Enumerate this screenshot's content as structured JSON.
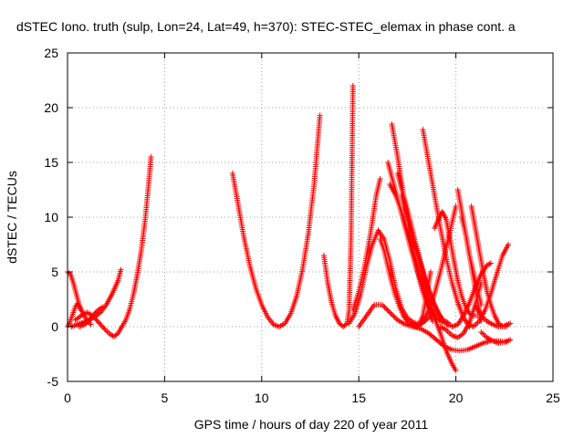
{
  "chart_data": {
    "type": "scatter",
    "title": "dSTEC Iono. truth (sulp, Lon=24, Lat=49, h=370): STEC-STEC_elemax in phase cont. a",
    "xlabel": "GPS time / hours of day 220 of year 2011",
    "ylabel": "dSTEC  / TECUs",
    "xlim": [
      0,
      25
    ],
    "ylim": [
      -5,
      25
    ],
    "xticks": [
      0,
      5,
      10,
      15,
      20,
      25
    ],
    "yticks": [
      -5,
      0,
      5,
      10,
      15,
      20,
      25
    ],
    "grid": true,
    "marker": "plus",
    "color": "#ff0000",
    "series": [
      {
        "x": [
          0.0,
          0.15,
          0.3,
          0.45,
          0.6,
          0.8,
          1.0,
          1.2
        ],
        "y": [
          5.0,
          4.8,
          4.0,
          3.0,
          2.0,
          1.2,
          0.6,
          0.2
        ]
      },
      {
        "x": [
          0.0,
          0.1,
          0.2,
          0.3,
          0.4,
          0.5,
          0.7
        ],
        "y": [
          0.0,
          0.3,
          0.8,
          1.3,
          1.8,
          2.1,
          1.5
        ]
      },
      {
        "x": [
          0.2,
          0.5,
          0.8,
          1.1,
          1.4,
          1.7,
          2.0,
          2.3,
          2.6,
          2.75
        ],
        "y": [
          0.0,
          0.2,
          0.4,
          0.6,
          0.9,
          1.3,
          2.0,
          3.0,
          4.2,
          5.2
        ]
      },
      {
        "x": [
          0.4,
          0.7,
          1.0,
          1.3,
          1.6,
          1.9,
          2.2,
          2.4,
          2.6,
          2.8
        ],
        "y": [
          0.6,
          1.0,
          1.3,
          1.0,
          0.4,
          -0.2,
          -0.7,
          -0.9,
          -0.6,
          0.0
        ]
      },
      {
        "x": [
          0.6,
          0.9,
          1.2,
          1.5,
          1.8
        ],
        "y": [
          0.0,
          0.2,
          0.8,
          1.4,
          1.8
        ]
      },
      {
        "x": [
          2.8,
          3.0,
          3.2,
          3.4,
          3.6,
          3.8,
          4.0,
          4.15,
          4.3
        ],
        "y": [
          0.0,
          0.6,
          1.6,
          3.0,
          4.8,
          7.0,
          9.8,
          12.5,
          15.5
        ]
      },
      {
        "x": [
          8.5,
          8.8,
          9.1,
          9.4,
          9.7,
          10.0,
          10.3,
          10.6,
          10.9,
          11.2,
          11.5,
          11.8,
          12.1,
          12.4,
          12.7,
          13.0
        ],
        "y": [
          14.0,
          11.0,
          8.0,
          5.5,
          3.5,
          2.0,
          0.9,
          0.2,
          0.0,
          0.3,
          1.2,
          2.8,
          5.2,
          8.5,
          13.0,
          19.3
        ]
      },
      {
        "x": [
          13.2,
          13.4,
          13.6,
          13.8,
          14.0,
          14.2,
          14.4,
          14.5,
          14.6,
          14.7
        ],
        "y": [
          6.5,
          4.0,
          2.2,
          1.0,
          0.3,
          0.0,
          0.3,
          1.5,
          8.0,
          22.0
        ]
      },
      {
        "x": [
          14.5,
          14.8,
          15.1,
          15.4,
          15.7,
          16.0,
          16.3,
          16.6,
          16.9,
          17.2,
          17.5,
          17.8,
          18.1,
          18.4,
          18.7
        ],
        "y": [
          0.3,
          1.2,
          3.0,
          5.5,
          7.5,
          8.8,
          8.0,
          6.0,
          3.5,
          1.7,
          0.8,
          0.4,
          0.2,
          0.5,
          1.0
        ]
      },
      {
        "x": [
          14.7,
          15.0,
          15.3,
          15.6,
          15.9,
          16.1
        ],
        "y": [
          1.5,
          3.2,
          5.5,
          8.5,
          12.0,
          13.5
        ]
      },
      {
        "x": [
          15.0,
          15.4,
          15.8,
          16.2,
          16.6,
          17.0,
          17.4,
          17.8,
          18.2,
          18.6,
          19.0,
          19.4,
          19.8,
          20.2,
          20.6,
          21.0,
          21.4,
          21.8,
          22.2,
          22.6
        ],
        "y": [
          0.0,
          1.0,
          2.0,
          2.0,
          1.3,
          0.6,
          0.2,
          0.0,
          -0.2,
          -0.6,
          -1.2,
          -1.8,
          -2.1,
          -2.2,
          -2.1,
          -1.8,
          -1.5,
          -1.3,
          -1.3,
          -1.4
        ]
      },
      {
        "x": [
          16.7,
          17.0,
          17.3,
          17.6,
          17.9,
          18.2,
          18.5,
          18.8
        ],
        "y": [
          18.5,
          15.5,
          12.0,
          8.8,
          6.0,
          3.8,
          2.0,
          0.5
        ]
      },
      {
        "x": [
          16.5,
          16.8,
          17.1,
          17.4,
          17.7,
          18.0,
          18.3,
          18.6,
          18.9,
          19.2,
          19.5,
          19.8,
          20.0
        ],
        "y": [
          15.0,
          13.0,
          11.0,
          9.0,
          7.0,
          5.2,
          3.6,
          2.0,
          0.8,
          -0.6,
          -2.2,
          -3.4,
          -4.0
        ]
      },
      {
        "x": [
          16.6,
          16.9,
          17.2,
          17.5,
          17.8,
          18.1,
          18.4,
          18.7,
          19.0,
          19.3
        ],
        "y": [
          13.0,
          12.0,
          10.5,
          8.8,
          7.0,
          5.0,
          3.2,
          1.8,
          0.8,
          0.4
        ]
      },
      {
        "x": [
          17.0,
          17.3,
          17.6,
          17.9,
          18.2,
          18.5,
          18.8,
          19.1,
          19.4
        ],
        "y": [
          14.0,
          12.0,
          10.0,
          7.8,
          5.8,
          3.8,
          2.3,
          1.2,
          0.5
        ]
      },
      {
        "x": [
          17.2,
          17.5,
          17.8,
          18.1,
          18.4,
          18.7,
          19.0,
          19.3,
          19.6
        ],
        "y": [
          12.0,
          10.0,
          8.0,
          6.2,
          4.4,
          2.9,
          1.6,
          0.6,
          0.1
        ]
      },
      {
        "x": [
          18.3,
          18.6,
          18.9,
          19.2,
          19.5,
          19.8,
          20.1,
          20.4,
          20.7
        ],
        "y": [
          18.0,
          15.0,
          12.0,
          9.0,
          6.3,
          4.0,
          2.2,
          0.8,
          0.0
        ]
      },
      {
        "x": [
          16.1,
          16.3,
          16.5,
          16.7,
          16.9,
          17.1,
          17.3,
          17.5,
          17.7,
          17.9,
          18.1,
          18.3,
          18.5,
          18.7
        ],
        "y": [
          8.0,
          7.0,
          5.5,
          4.0,
          2.8,
          1.8,
          1.0,
          0.5,
          0.2,
          0.0,
          0.2,
          1.0,
          3.0,
          5.0
        ]
      },
      {
        "x": [
          18.0,
          18.3,
          18.6,
          18.9,
          19.2,
          19.5,
          19.8,
          20.0
        ],
        "y": [
          0.0,
          0.4,
          1.5,
          3.0,
          5.0,
          7.2,
          9.5,
          11.0
        ]
      },
      {
        "x": [
          18.9,
          19.1,
          19.3,
          19.5,
          19.7,
          19.9,
          20.1,
          20.3,
          20.5,
          20.7,
          20.9,
          21.1
        ],
        "y": [
          9.0,
          9.8,
          10.5,
          9.8,
          8.0,
          6.0,
          4.2,
          2.8,
          1.8,
          1.2,
          1.0,
          1.0
        ]
      },
      {
        "x": [
          20.1,
          20.3,
          20.5,
          20.7,
          20.9,
          21.1,
          21.3
        ],
        "y": [
          12.5,
          10.5,
          8.5,
          6.5,
          4.5,
          2.5,
          0.5
        ]
      },
      {
        "x": [
          20.3,
          20.5,
          20.7,
          20.9,
          21.1,
          21.3
        ],
        "y": [
          10.0,
          8.5,
          6.5,
          5.0,
          3.5,
          2.0
        ]
      },
      {
        "x": [
          20.8,
          21.0,
          21.2,
          21.4,
          21.6,
          21.8,
          22.0,
          22.2,
          22.4,
          22.6
        ],
        "y": [
          11.0,
          9.0,
          7.0,
          5.0,
          3.2,
          2.0,
          1.0,
          0.3,
          0.0,
          0.0
        ]
      },
      {
        "x": [
          19.2,
          19.5,
          19.8,
          20.1,
          20.4,
          20.7,
          21.0,
          21.3
        ],
        "y": [
          0.0,
          -0.3,
          -0.8,
          -1.0,
          -0.6,
          0.4,
          2.0,
          4.0
        ]
      },
      {
        "x": [
          19.5,
          19.8,
          20.1,
          20.4,
          20.7,
          21.0,
          21.3,
          21.6,
          21.8
        ],
        "y": [
          0.5,
          0.0,
          0.2,
          1.0,
          2.2,
          3.6,
          4.8,
          5.6,
          5.8
        ]
      },
      {
        "x": [
          20.6,
          20.9,
          21.2,
          21.5,
          21.8,
          22.1,
          22.4,
          22.7
        ],
        "y": [
          0.3,
          0.0,
          0.5,
          1.5,
          3.0,
          4.8,
          6.5,
          7.5
        ]
      },
      {
        "x": [
          21.0,
          21.3,
          21.6,
          21.9,
          22.2,
          22.5,
          22.8
        ],
        "y": [
          2.0,
          1.0,
          0.5,
          0.2,
          0.0,
          0.1,
          0.3
        ]
      },
      {
        "x": [
          21.3,
          21.6,
          21.9,
          22.2,
          22.5,
          22.8
        ],
        "y": [
          -0.5,
          -1.0,
          -1.3,
          -1.5,
          -1.4,
          -1.2
        ]
      }
    ]
  }
}
